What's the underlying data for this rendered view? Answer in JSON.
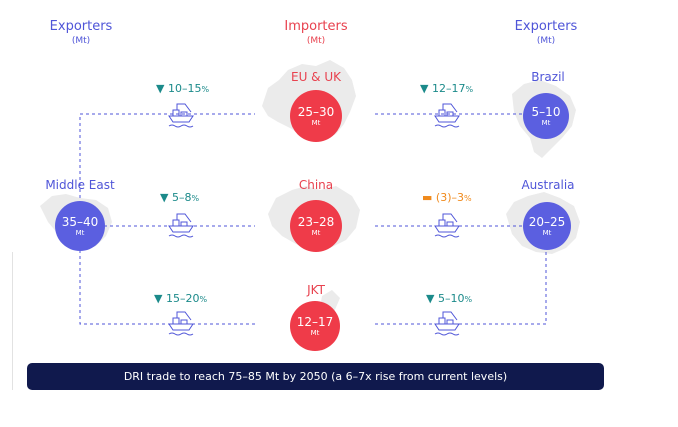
{
  "headers": {
    "left": {
      "title": "Exporters",
      "unit": "(Mt)"
    },
    "center": {
      "title": "Importers",
      "unit": "(Mt)"
    },
    "right": {
      "title": "Exporters",
      "unit": "(Mt)"
    }
  },
  "nodes": {
    "middle_east": {
      "label": "Middle East",
      "value": "35–40",
      "unit": "Mt"
    },
    "brazil": {
      "label": "Brazil",
      "value": "5–10",
      "unit": "Mt"
    },
    "australia": {
      "label": "Australia",
      "value": "20–25",
      "unit": "Mt"
    },
    "eu_uk": {
      "label": "EU & UK",
      "value": "25–30",
      "unit": "Mt"
    },
    "china": {
      "label": "China",
      "value": "23–28",
      "unit": "Mt"
    },
    "jkt": {
      "label": "JKT",
      "value": "12–17",
      "unit": "Mt"
    }
  },
  "routes": {
    "me_eu": {
      "marker": "▼",
      "range": "10–15",
      "suffix": "%"
    },
    "me_china": {
      "marker": "▼",
      "range": "5–8",
      "suffix": "%"
    },
    "me_jkt": {
      "marker": "▼",
      "range": "15–20",
      "suffix": "%"
    },
    "brazil_eu": {
      "marker": "▼",
      "range": "12–17",
      "suffix": "%"
    },
    "australia_china": {
      "marker": "▬",
      "range": "(3)–3",
      "suffix": "%"
    },
    "australia_jkt": {
      "marker": "▼",
      "range": "5–10",
      "suffix": "%"
    }
  },
  "banner": {
    "text": "DRI trade to reach 75–85 Mt by 2050 (a 6–7x rise from current levels)"
  },
  "icons": {
    "route": "cargo-ship-icon",
    "map": "region-map-silhouette"
  },
  "colors": {
    "exporter": "#5b5fe0",
    "importer": "#ef3b49",
    "growth": "#1b8a8a",
    "flat": "#f08a1c",
    "banner": "#10194d"
  }
}
